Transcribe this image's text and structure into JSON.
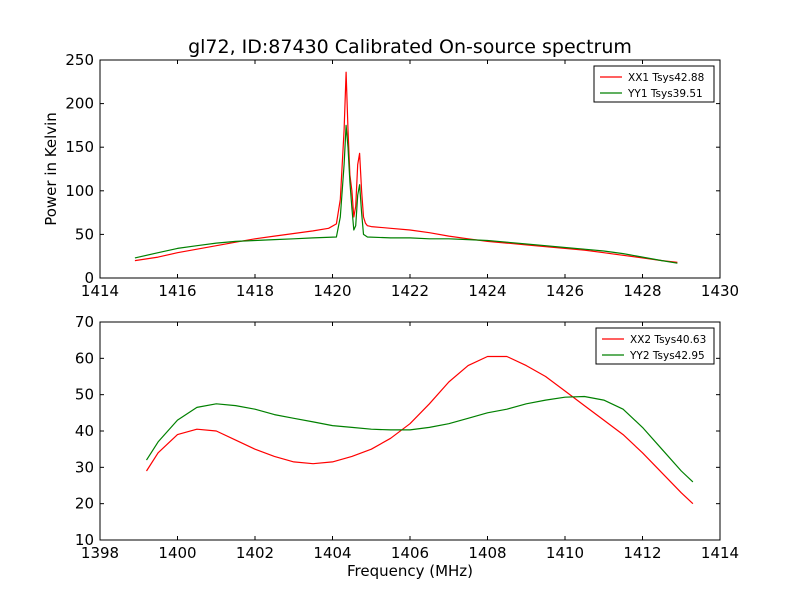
{
  "figure": {
    "title": "gl72, ID:87430 Calibrated On-source spectrum"
  },
  "chart_data": [
    {
      "type": "line",
      "title": "gl72, ID:87430 Calibrated On-source spectrum",
      "xlabel": "",
      "ylabel": "Power in Kelvin",
      "xlim": [
        1414,
        1430
      ],
      "ylim": [
        0,
        250
      ],
      "xticks": [
        1414,
        1416,
        1418,
        1420,
        1422,
        1424,
        1426,
        1428,
        1430
      ],
      "yticks": [
        0,
        50,
        100,
        150,
        200,
        250
      ],
      "legend_position": "top-right",
      "grid": false,
      "series": [
        {
          "name": "XX1 Tsys42.88",
          "color": "#ff0000",
          "x": [
            1414.9,
            1415.5,
            1416,
            1416.5,
            1417,
            1417.5,
            1418,
            1418.5,
            1419,
            1419.5,
            1419.9,
            1420.1,
            1420.2,
            1420.3,
            1420.35,
            1420.4,
            1420.45,
            1420.5,
            1420.55,
            1420.6,
            1420.65,
            1420.7,
            1420.75,
            1420.8,
            1420.85,
            1420.9,
            1421,
            1421.5,
            1422,
            1422.5,
            1423,
            1423.5,
            1424,
            1424.5,
            1425,
            1425.5,
            1426,
            1426.5,
            1427,
            1427.5,
            1428,
            1428.5,
            1428.9
          ],
          "y": [
            20,
            24,
            29,
            33,
            37,
            41,
            45,
            48,
            51,
            54,
            57,
            62,
            90,
            170,
            236,
            170,
            118,
            100,
            70,
            82,
            130,
            143,
            100,
            70,
            63,
            60,
            59,
            57,
            55,
            52,
            48,
            45,
            42,
            40,
            38,
            36,
            34,
            32,
            29,
            26,
            23,
            20,
            18
          ]
        },
        {
          "name": "YY1 Tsys39.51",
          "color": "#008000",
          "x": [
            1414.9,
            1415.5,
            1416,
            1416.5,
            1417,
            1417.5,
            1418,
            1418.5,
            1419,
            1419.5,
            1420.1,
            1420.2,
            1420.3,
            1420.35,
            1420.4,
            1420.45,
            1420.5,
            1420.55,
            1420.6,
            1420.65,
            1420.7,
            1420.75,
            1420.8,
            1420.9,
            1421.5,
            1422,
            1422.5,
            1423,
            1423.5,
            1424,
            1424.5,
            1425,
            1425.5,
            1426,
            1426.5,
            1427,
            1427.5,
            1428,
            1428.5,
            1428.9
          ],
          "y": [
            23,
            29,
            34,
            37,
            40,
            42,
            43,
            44,
            45,
            46,
            47,
            70,
            130,
            175,
            150,
            110,
            80,
            55,
            60,
            95,
            107,
            75,
            50,
            47,
            46,
            46,
            45,
            45,
            44,
            43,
            41,
            39,
            37,
            35,
            33,
            31,
            28,
            24,
            20,
            17
          ]
        }
      ]
    },
    {
      "type": "line",
      "title": "",
      "xlabel": "Frequency (MHz)",
      "ylabel": "",
      "xlim": [
        1398,
        1414
      ],
      "ylim": [
        10,
        70
      ],
      "xticks": [
        1398,
        1400,
        1402,
        1404,
        1406,
        1408,
        1410,
        1412,
        1414
      ],
      "yticks": [
        10,
        20,
        30,
        40,
        50,
        60,
        70
      ],
      "legend_position": "top-right",
      "grid": false,
      "series": [
        {
          "name": "XX2 Tsys40.63",
          "color": "#ff0000",
          "x": [
            1399.2,
            1399.5,
            1400,
            1400.5,
            1401,
            1401.5,
            1402,
            1402.5,
            1403,
            1403.5,
            1404,
            1404.5,
            1405,
            1405.5,
            1406,
            1406.5,
            1407,
            1407.5,
            1408,
            1408.5,
            1409,
            1409.5,
            1410,
            1410.5,
            1411,
            1411.5,
            1412,
            1412.5,
            1413,
            1413.3
          ],
          "y": [
            29,
            34,
            39,
            40.5,
            40,
            37.5,
            35,
            33,
            31.5,
            31,
            31.5,
            33,
            35,
            38,
            42,
            47.5,
            53.5,
            58,
            60.5,
            60.5,
            58,
            55,
            51,
            47,
            43,
            39,
            34,
            28.5,
            23,
            20
          ]
        },
        {
          "name": "YY2 Tsys42.95",
          "color": "#008000",
          "x": [
            1399.2,
            1399.5,
            1400,
            1400.5,
            1401,
            1401.5,
            1402,
            1402.5,
            1403,
            1403.5,
            1404,
            1404.5,
            1405,
            1405.5,
            1406,
            1406.5,
            1407,
            1407.5,
            1408,
            1408.5,
            1409,
            1409.5,
            1410,
            1410.5,
            1411,
            1411.5,
            1412,
            1412.5,
            1413,
            1413.3
          ],
          "y": [
            32,
            37,
            43,
            46.5,
            47.5,
            47,
            46,
            44.5,
            43.5,
            42.5,
            41.5,
            41,
            40.5,
            40.3,
            40.3,
            41,
            42,
            43.5,
            45,
            46,
            47.5,
            48.5,
            49.3,
            49.5,
            48.5,
            46,
            41,
            35,
            29,
            26
          ]
        }
      ]
    }
  ]
}
